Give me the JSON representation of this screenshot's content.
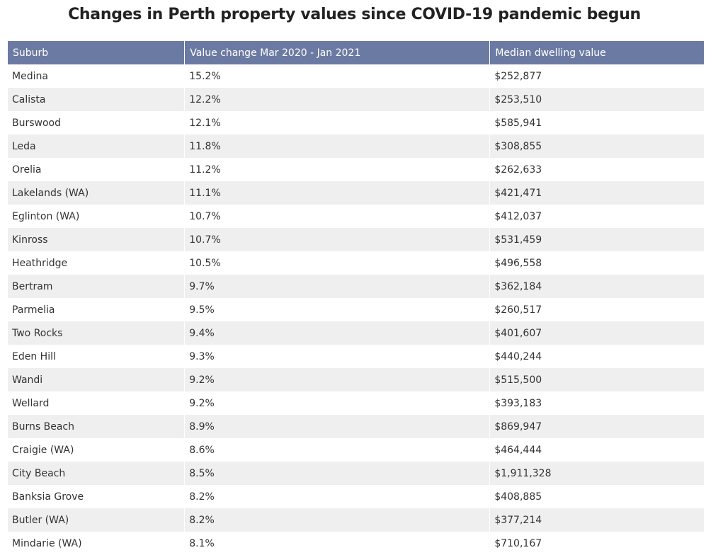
{
  "chart_data": {
    "type": "table",
    "title": "Changes in Perth property values since COVID-19 pandemic begun",
    "columns": [
      "Suburb",
      "Value change Mar 2020 - Jan 2021",
      "Median dwelling value"
    ],
    "rows": [
      [
        "Medina",
        "15.2%",
        "$252,877"
      ],
      [
        "Calista",
        "12.2%",
        "$253,510"
      ],
      [
        "Burswood",
        "12.1%",
        "$585,941"
      ],
      [
        "Leda",
        "11.8%",
        "$308,855"
      ],
      [
        "Orelia",
        "11.2%",
        "$262,633"
      ],
      [
        "Lakelands (WA)",
        "11.1%",
        "$421,471"
      ],
      [
        "Eglinton (WA)",
        "10.7%",
        "$412,037"
      ],
      [
        "Kinross",
        "10.7%",
        "$531,459"
      ],
      [
        "Heathridge",
        "10.5%",
        "$496,558"
      ],
      [
        "Bertram",
        "9.7%",
        "$362,184"
      ],
      [
        "Parmelia",
        "9.5%",
        "$260,517"
      ],
      [
        "Two Rocks",
        "9.4%",
        "$401,607"
      ],
      [
        "Eden Hill",
        "9.3%",
        "$440,244"
      ],
      [
        "Wandi",
        "9.2%",
        "$515,500"
      ],
      [
        "Wellard",
        "9.2%",
        "$393,183"
      ],
      [
        "Burns Beach",
        "8.9%",
        "$869,947"
      ],
      [
        "Craigie (WA)",
        "8.6%",
        "$464,444"
      ],
      [
        "City Beach",
        "8.5%",
        "$1,911,328"
      ],
      [
        "Banksia Grove",
        "8.2%",
        "$408,885"
      ],
      [
        "Butler (WA)",
        "8.2%",
        "$377,214"
      ],
      [
        "Mindarie (WA)",
        "8.1%",
        "$710,167"
      ]
    ]
  },
  "colors": {
    "header_background": "#6b7aa2",
    "header_text": "#ffffff",
    "row_alt_background": "#efefef"
  }
}
